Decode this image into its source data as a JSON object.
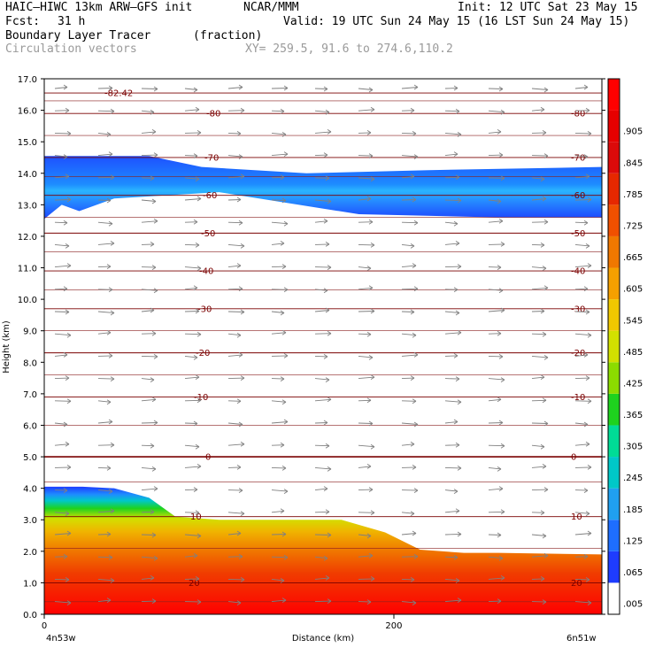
{
  "header": {
    "model": "HAIC–HIWC 13km ARW–GFS init",
    "org": "NCAR/MMM",
    "init": "Init: 12 UTC Sat 23 May 15",
    "fcst_label": "Fcst:",
    "fcst_value": "31 h",
    "valid": "Valid: 19 UTC Sun 24 May 15 (16 LST Sun 24 May 15)",
    "field": "Boundary Layer Tracer",
    "units": "(fraction)",
    "vectors": "Circulation vectors",
    "xy": "XY= 259.5, 91.6 to 274.6,110.2"
  },
  "chart_data": {
    "type": "heatmap",
    "ylabel": "Height (km)",
    "xlabel": "Distance (km)",
    "x_ticks": [
      "0",
      "200"
    ],
    "x_endpoints": [
      "4n53w",
      "6n51w"
    ],
    "y_ticks": [
      "0.0",
      "1.0",
      "2.0",
      "3.0",
      "4.0",
      "5.0",
      "6.0",
      "7.0",
      "8.0",
      "9.0",
      "10.0",
      "11.0",
      "12.0",
      "13.0",
      "14.0",
      "15.0",
      "16.0",
      "17.0"
    ],
    "ylim": [
      0,
      17
    ],
    "xlim": [
      0,
      319
    ],
    "colorbar": {
      "labels": [
        ".005",
        ".065",
        ".125",
        ".185",
        ".245",
        ".305",
        ".365",
        ".425",
        ".485",
        ".545",
        ".605",
        ".665",
        ".725",
        ".785",
        ".845",
        ".905"
      ],
      "colors": [
        "#ffffff",
        "#1e3cff",
        "#1e6eff",
        "#20a0f0",
        "#00c8c8",
        "#00dc96",
        "#1ed21e",
        "#8cdc00",
        "#d2e000",
        "#f0c800",
        "#f5a000",
        "#f07800",
        "#f05000",
        "#e62800",
        "#dc0a0a",
        "#e60000",
        "#ff0000"
      ]
    },
    "tracer_top_km": [
      [
        0,
        4.05
      ],
      [
        22,
        4.05
      ],
      [
        40,
        4.0
      ],
      [
        60,
        3.7
      ],
      [
        75,
        3.1
      ],
      [
        100,
        3.0
      ],
      [
        170,
        3.0
      ],
      [
        195,
        2.6
      ],
      [
        215,
        2.05
      ],
      [
        240,
        1.95
      ],
      [
        260,
        1.95
      ],
      [
        319,
        1.9
      ]
    ],
    "upper_band_km": [
      [
        0,
        12.55
      ],
      [
        10,
        13.0
      ],
      [
        20,
        12.8
      ],
      [
        40,
        13.2
      ],
      [
        100,
        13.4
      ],
      [
        180,
        12.7
      ],
      [
        260,
        12.6
      ],
      [
        319,
        12.6
      ],
      [
        319,
        14.2
      ],
      [
        220,
        14.1
      ],
      [
        150,
        14.0
      ],
      [
        90,
        14.2
      ],
      [
        60,
        14.55
      ],
      [
        0,
        14.55
      ]
    ],
    "temperature_contours": [
      {
        "label": "-82.42",
        "y_km": 16.55
      },
      {
        "label": "-80",
        "y_km": 15.9
      },
      {
        "label": "-70",
        "y_km": 14.5
      },
      {
        "label": "-60",
        "y_km": 13.3
      },
      {
        "label": "-50",
        "y_km": 12.1
      },
      {
        "label": "-40",
        "y_km": 10.9
      },
      {
        "label": "-30",
        "y_km": 9.7
      },
      {
        "label": "-20",
        "y_km": 8.3
      },
      {
        "label": "-10",
        "y_km": 6.9
      },
      {
        "label": "0",
        "y_km": 5.0
      },
      {
        "label": "10",
        "y_km": 3.1
      },
      {
        "label": "20",
        "y_km": 1.0
      }
    ]
  }
}
